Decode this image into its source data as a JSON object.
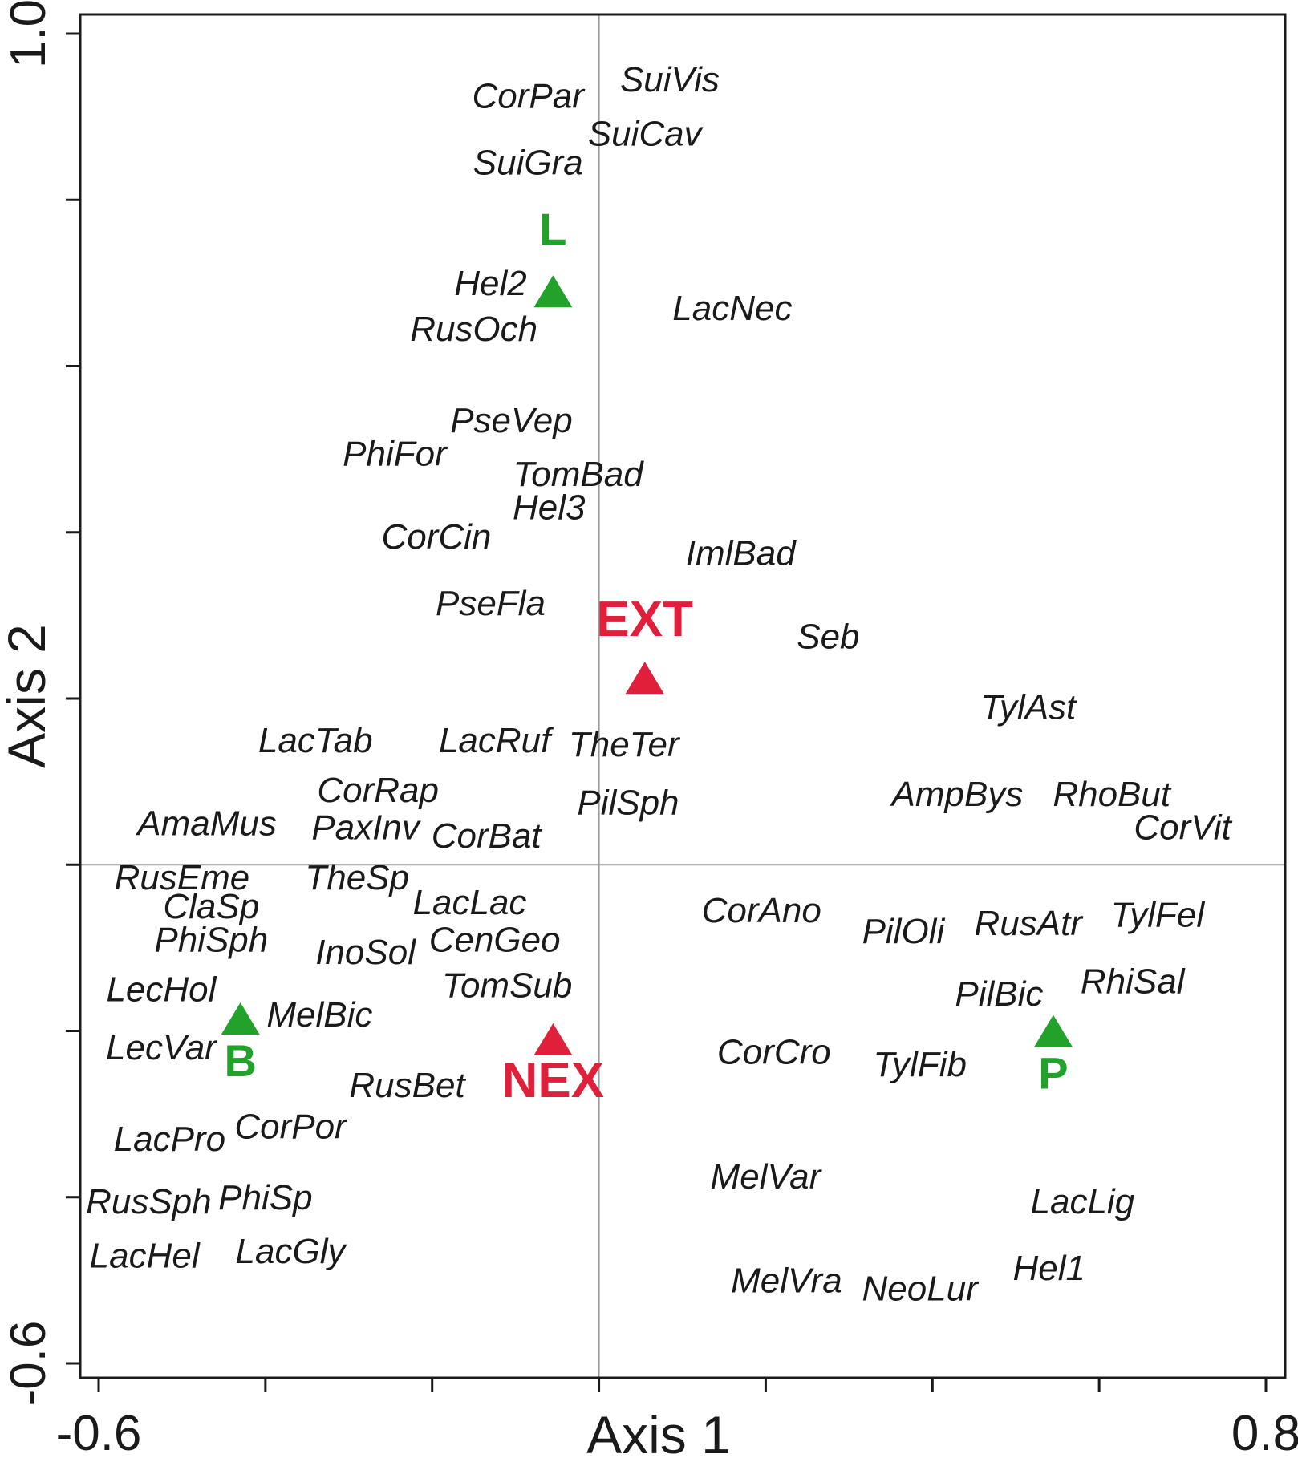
{
  "chart_data": {
    "type": "scatter",
    "title": "",
    "xlabel": "Axis 1",
    "ylabel": "Axis 2",
    "xlim": [
      -0.6,
      0.8
    ],
    "ylim": [
      -0.6,
      1.0
    ],
    "x_tick_labels": [
      "-0.6",
      "0.8"
    ],
    "y_tick_labels": [
      "1.0",
      "-0.6"
    ],
    "reference_lines": {
      "x": 0.0,
      "y": 0.0
    },
    "grid": false,
    "colors": {
      "site_groups": "#22a22a",
      "extraction": "#e0203a",
      "species": "#1a1a1a",
      "reference_line": "#999999"
    },
    "groups": [
      {
        "label": "L",
        "x": -0.055,
        "y": 0.69,
        "color": "#22a22a"
      },
      {
        "label": "B",
        "x": -0.43,
        "y": -0.185,
        "color": "#22a22a"
      },
      {
        "label": "P",
        "x": 0.545,
        "y": -0.2,
        "color": "#22a22a"
      },
      {
        "label": "EXT",
        "x": 0.055,
        "y": 0.225,
        "color": "#e0203a"
      },
      {
        "label": "NEX",
        "x": -0.055,
        "y": -0.21,
        "color": "#e0203a"
      }
    ],
    "species": [
      {
        "label": "SuiVis",
        "x": 0.085,
        "y": 0.945
      },
      {
        "label": "CorPar",
        "x": -0.085,
        "y": 0.925
      },
      {
        "label": "SuiCav",
        "x": 0.055,
        "y": 0.88
      },
      {
        "label": "SuiGra",
        "x": -0.085,
        "y": 0.845
      },
      {
        "label": "Hel2",
        "x": -0.13,
        "y": 0.7
      },
      {
        "label": "LacNec",
        "x": 0.16,
        "y": 0.67
      },
      {
        "label": "RusOch",
        "x": -0.15,
        "y": 0.645
      },
      {
        "label": "PseVep",
        "x": -0.105,
        "y": 0.535
      },
      {
        "label": "PhiFor",
        "x": -0.245,
        "y": 0.495
      },
      {
        "label": "TomBad",
        "x": -0.025,
        "y": 0.47
      },
      {
        "label": "Hel3",
        "x": -0.06,
        "y": 0.43
      },
      {
        "label": "CorCin",
        "x": -0.195,
        "y": 0.395
      },
      {
        "label": "ImlBad",
        "x": 0.17,
        "y": 0.375
      },
      {
        "label": "PseFla",
        "x": -0.13,
        "y": 0.315
      },
      {
        "label": "Seb",
        "x": 0.275,
        "y": 0.275
      },
      {
        "label": "TylAst",
        "x": 0.515,
        "y": 0.19
      },
      {
        "label": "LacTab",
        "x": -0.34,
        "y": 0.15
      },
      {
        "label": "LacRuf",
        "x": -0.125,
        "y": 0.15
      },
      {
        "label": "TheTer",
        "x": 0.03,
        "y": 0.145
      },
      {
        "label": "CorRap",
        "x": -0.265,
        "y": 0.09
      },
      {
        "label": "PilSph",
        "x": 0.035,
        "y": 0.075
      },
      {
        "label": "AmpBys",
        "x": 0.43,
        "y": 0.085
      },
      {
        "label": "RhoBut",
        "x": 0.615,
        "y": 0.085
      },
      {
        "label": "AmaMus",
        "x": -0.47,
        "y": 0.05
      },
      {
        "label": "PaxInv",
        "x": -0.28,
        "y": 0.045
      },
      {
        "label": "CorBat",
        "x": -0.135,
        "y": 0.035
      },
      {
        "label": "CorVit",
        "x": 0.7,
        "y": 0.045
      },
      {
        "label": "RusEme",
        "x": -0.5,
        "y": -0.015
      },
      {
        "label": "TheSp",
        "x": -0.29,
        "y": -0.015
      },
      {
        "label": "LacLac",
        "x": -0.155,
        "y": -0.045
      },
      {
        "label": "ClaSp",
        "x": -0.465,
        "y": -0.05
      },
      {
        "label": "CorAno",
        "x": 0.195,
        "y": -0.055
      },
      {
        "label": "TylFel",
        "x": 0.67,
        "y": -0.06
      },
      {
        "label": "RusAtr",
        "x": 0.515,
        "y": -0.07
      },
      {
        "label": "PilOli",
        "x": 0.365,
        "y": -0.08
      },
      {
        "label": "PhiSph",
        "x": -0.465,
        "y": -0.09
      },
      {
        "label": "CenGeo",
        "x": -0.125,
        "y": -0.09
      },
      {
        "label": "InoSol",
        "x": -0.28,
        "y": -0.105
      },
      {
        "label": "TomSub",
        "x": -0.11,
        "y": -0.145
      },
      {
        "label": "LecHol",
        "x": -0.525,
        "y": -0.15
      },
      {
        "label": "RhiSal",
        "x": 0.64,
        "y": -0.14
      },
      {
        "label": "PilBic",
        "x": 0.48,
        "y": -0.155
      },
      {
        "label": "MelBic",
        "x": -0.335,
        "y": -0.18
      },
      {
        "label": "LecVar",
        "x": -0.525,
        "y": -0.22
      },
      {
        "label": "CorCro",
        "x": 0.21,
        "y": -0.225
      },
      {
        "label": "TylFib",
        "x": 0.385,
        "y": -0.24
      },
      {
        "label": "RusBet",
        "x": -0.23,
        "y": -0.265
      },
      {
        "label": "CorPor",
        "x": -0.37,
        "y": -0.315
      },
      {
        "label": "LacPro",
        "x": -0.515,
        "y": -0.33
      },
      {
        "label": "MelVar",
        "x": 0.2,
        "y": -0.375
      },
      {
        "label": "PhiSp",
        "x": -0.4,
        "y": -0.4
      },
      {
        "label": "RusSph",
        "x": -0.54,
        "y": -0.405
      },
      {
        "label": "LacLig",
        "x": 0.58,
        "y": -0.405
      },
      {
        "label": "LacGly",
        "x": -0.37,
        "y": -0.465
      },
      {
        "label": "LacHel",
        "x": -0.545,
        "y": -0.47
      },
      {
        "label": "Hel1",
        "x": 0.54,
        "y": -0.485
      },
      {
        "label": "MelVra",
        "x": 0.225,
        "y": -0.5
      },
      {
        "label": "NeoLur",
        "x": 0.385,
        "y": -0.51
      }
    ]
  }
}
